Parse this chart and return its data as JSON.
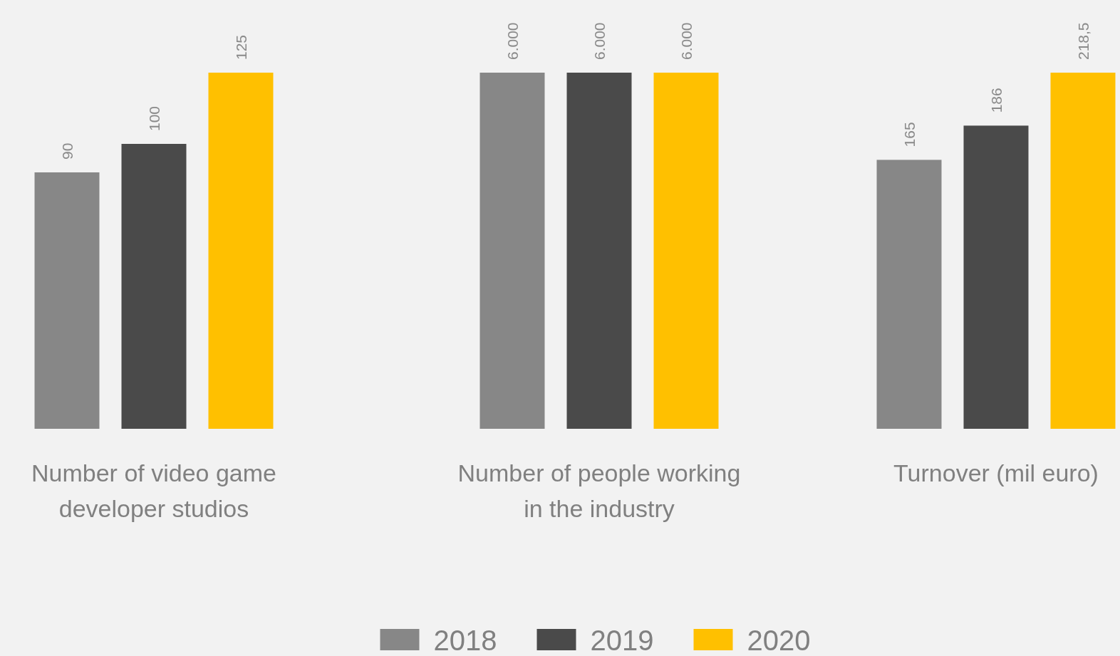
{
  "chart_data": [
    {
      "type": "bar",
      "xlabel": "Number of video game developer studios",
      "categories": [
        null
      ],
      "series": [
        {
          "color": "#878787",
          "values": [
            90
          ],
          "value_labels": [
            "90"
          ]
        },
        {
          "color": "#4a4a4a",
          "values": [
            100
          ],
          "value_labels": [
            "100"
          ]
        },
        {
          "color": "#ffc000",
          "values": [
            125
          ],
          "value_labels": [
            "125"
          ]
        }
      ]
    },
    {
      "type": "bar",
      "xlabel": "Number of people working in the industry",
      "categories": [
        null
      ],
      "legend": "bottom",
      "series": [
        {
          "name": "2018",
          "color": "#878787",
          "values": [
            6000
          ],
          "value_labels": [
            "6.000"
          ]
        },
        {
          "name": "2019",
          "color": "#4a4a4a",
          "values": [
            6000
          ],
          "value_labels": [
            "6.000"
          ]
        },
        {
          "name": "2020",
          "color": "#ffc000",
          "values": [
            6000
          ],
          "value_labels": [
            "6.000"
          ]
        }
      ]
    },
    {
      "type": "bar",
      "xlabel": "Turnover (mil euro)",
      "categories": [
        null
      ],
      "series": [
        {
          "color": "#878787",
          "values": [
            165
          ],
          "value_labels": [
            "165"
          ]
        },
        {
          "color": "#4a4a4a",
          "values": [
            186
          ],
          "value_labels": [
            "186"
          ]
        },
        {
          "color": "#ffc000",
          "values": [
            218.5
          ],
          "value_labels": [
            "218,5"
          ]
        }
      ]
    }
  ]
}
